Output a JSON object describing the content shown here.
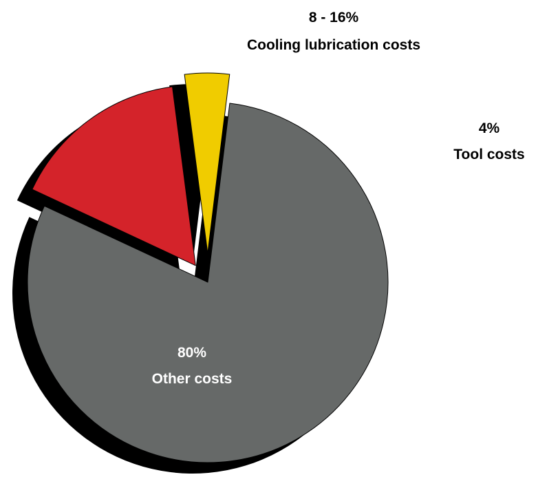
{
  "chart_data": {
    "type": "pie",
    "exploded": true,
    "shadow": true,
    "slices": [
      {
        "name": "Other costs",
        "value": 80,
        "value_label": "80%",
        "color": "#666968",
        "label_color": "#ffffff"
      },
      {
        "name": "Cooling lubrication costs",
        "value": 16,
        "value_label": "8 - 16%",
        "color": "#d4232a",
        "label_color": "#000000"
      },
      {
        "name": "Tool costs",
        "value": 4,
        "value_label": "4%",
        "color": "#f0cc00",
        "label_color": "#000000"
      }
    ]
  }
}
